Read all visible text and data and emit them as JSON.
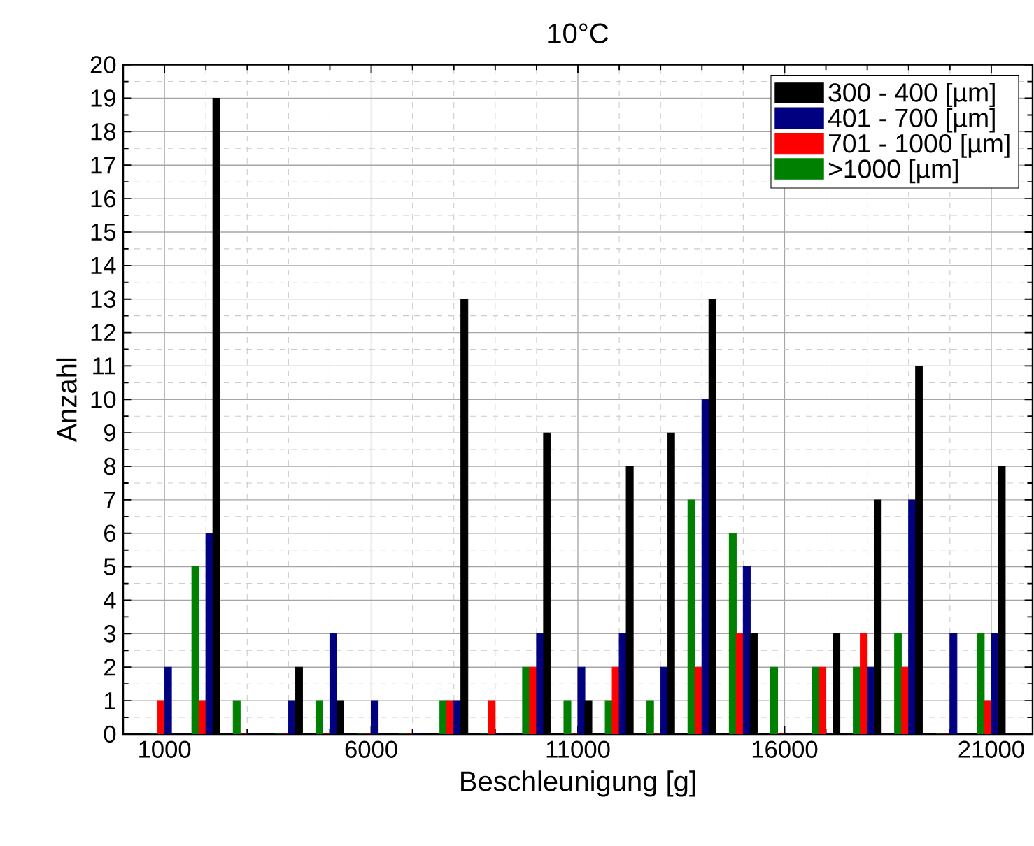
{
  "chart_data": {
    "type": "bar",
    "title": "10°C",
    "xlabel": "Beschleunigung [g]",
    "ylabel": "Anzahl",
    "x": [
      1000,
      2000,
      3000,
      4000,
      5000,
      6000,
      7000,
      8000,
      9000,
      10000,
      11000,
      12000,
      13000,
      14000,
      15000,
      16000,
      17000,
      18000,
      19000,
      20000,
      21000
    ],
    "series": [
      {
        "name": "300 - 400 [µm]",
        "color": "#000000",
        "values": [
          0,
          19,
          0,
          2,
          1,
          0,
          0,
          13,
          0,
          9,
          1,
          8,
          9,
          13,
          3,
          0,
          3,
          7,
          11,
          0,
          8
        ]
      },
      {
        "name": "401 - 700 [µm]",
        "color": "#000080",
        "values": [
          2,
          6,
          0,
          1,
          3,
          1,
          0,
          1,
          0,
          3,
          2,
          3,
          2,
          10,
          5,
          0,
          0,
          2,
          7,
          3,
          3
        ]
      },
      {
        "name": "701 - 1000 [µm]",
        "color": "#ff0000",
        "values": [
          1,
          1,
          0,
          0,
          0,
          0,
          0,
          1,
          1,
          2,
          0,
          2,
          0,
          2,
          3,
          0,
          2,
          3,
          2,
          0,
          1
        ]
      },
      {
        "name": ">1000 [µm]",
        "color": "#008000",
        "values": [
          0,
          5,
          1,
          0,
          1,
          0,
          0,
          1,
          0,
          2,
          1,
          1,
          1,
          7,
          6,
          2,
          2,
          2,
          3,
          0,
          3
        ]
      }
    ],
    "xlim": [
      0,
      22000
    ],
    "xticks": [
      1000,
      6000,
      11000,
      16000,
      21000
    ],
    "ylim": [
      0,
      20
    ],
    "yticks": [
      0,
      1,
      2,
      3,
      4,
      5,
      6,
      7,
      8,
      9,
      10,
      11,
      12,
      13,
      14,
      15,
      16,
      17,
      18,
      19,
      20
    ],
    "grid": true,
    "legend": "top right"
  }
}
